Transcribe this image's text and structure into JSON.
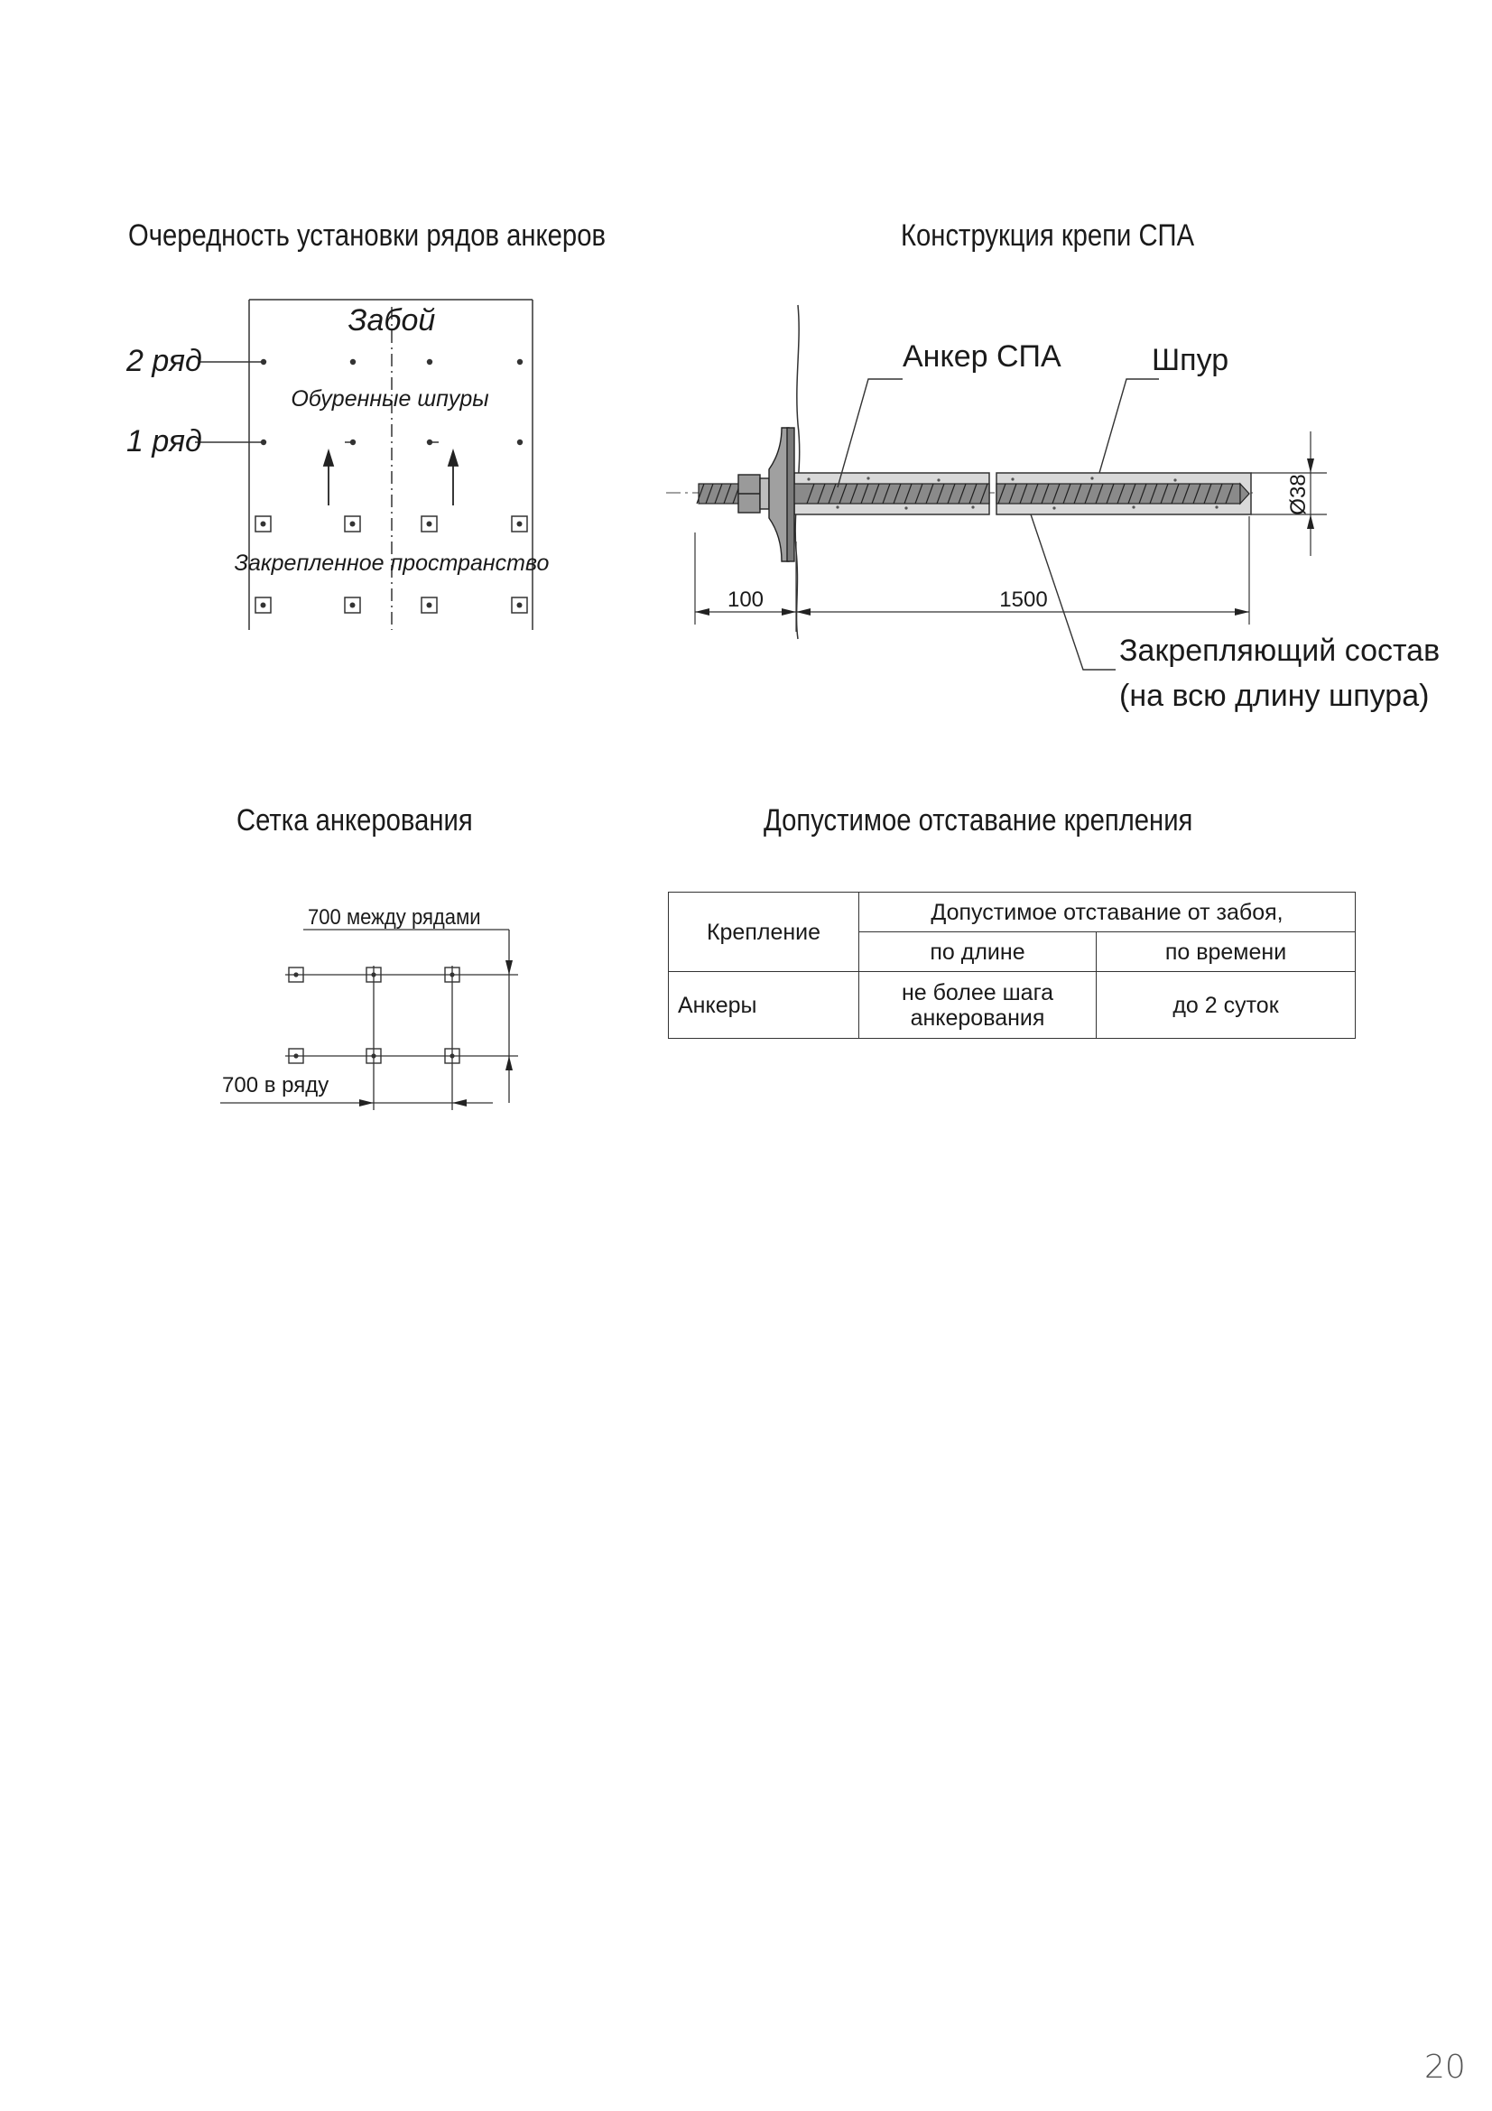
{
  "sections": {
    "sequence_title": "Очередность установки рядов анкеров",
    "construction_title": "Конструкция крепи СПА",
    "grid_title": "Сетка анкерования",
    "lag_title": "Допустимое отставание крепления"
  },
  "sequence_diagram": {
    "face_label": "Забой",
    "row2_label": "2 ряд",
    "row1_label": "1 ряд",
    "drilled_holes_label": "Обуренные шпуры",
    "secured_space_label": "Закрепленное пространство"
  },
  "construction_diagram": {
    "anchor_label": "Анкер СПА",
    "hole_label": "Шпур",
    "diameter_label": "Ø38",
    "dim_protrusion": "100",
    "dim_length": "1500",
    "fixing_compound_line1": "Закрепляющий состав",
    "fixing_compound_line2": "(на всю длину шпура)"
  },
  "grid_diagram": {
    "between_rows_label": "700 между рядами",
    "in_row_label": "700 в ряду"
  },
  "lag_table": {
    "col_fastening": "Крепление",
    "col_allowed_lag": "Допустимое отставание от забоя,",
    "col_by_length": "по длине",
    "col_by_time": "по времени",
    "rows": [
      {
        "fastening": "Анкеры",
        "by_length_line1": "не более шага",
        "by_length_line2": "анкерования",
        "by_time": "до 2 суток"
      }
    ]
  },
  "page_number": "20"
}
